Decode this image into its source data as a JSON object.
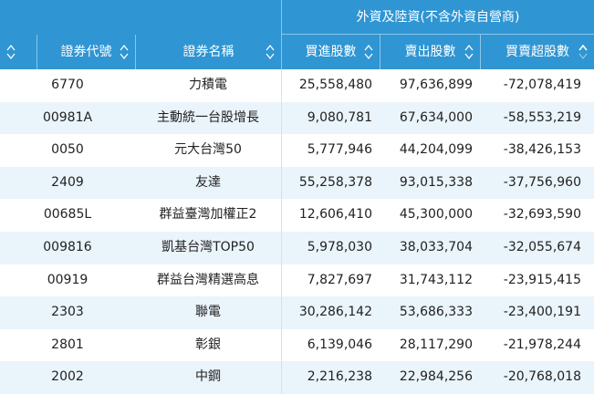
{
  "table": {
    "group_header": "外資及陸資(不含外資自營商)",
    "columns": {
      "code": "證券代號",
      "name": "證券名稱",
      "buy": "買進股數",
      "sell": "賣出股數",
      "net": "買賣超股數"
    },
    "rows": [
      {
        "code": "6770",
        "name": "力積電",
        "buy": "25,558,480",
        "sell": "97,636,899",
        "net": "-72,078,419"
      },
      {
        "code": "00981A",
        "name": "主動統一台股增長",
        "buy": "9,080,781",
        "sell": "67,634,000",
        "net": "-58,553,219"
      },
      {
        "code": "0050",
        "name": "元大台灣50",
        "buy": "5,777,946",
        "sell": "44,204,099",
        "net": "-38,426,153"
      },
      {
        "code": "2409",
        "name": "友達",
        "buy": "55,258,378",
        "sell": "93,015,338",
        "net": "-37,756,960"
      },
      {
        "code": "00685L",
        "name": "群益臺灣加權正2",
        "buy": "12,606,410",
        "sell": "45,300,000",
        "net": "-32,693,590"
      },
      {
        "code": "009816",
        "name": "凱基台灣TOP50",
        "buy": "5,978,030",
        "sell": "38,033,704",
        "net": "-32,055,674"
      },
      {
        "code": "00919",
        "name": "群益台灣精選高息",
        "buy": "7,827,697",
        "sell": "31,743,112",
        "net": "-23,915,415"
      },
      {
        "code": "2303",
        "name": "聯電",
        "buy": "30,286,142",
        "sell": "53,686,333",
        "net": "-23,400,191"
      },
      {
        "code": "2801",
        "name": "彰銀",
        "buy": "6,139,046",
        "sell": "28,117,290",
        "net": "-21,978,244"
      },
      {
        "code": "2002",
        "name": "中鋼",
        "buy": "2,216,238",
        "sell": "22,984,256",
        "net": "-20,768,018"
      }
    ]
  },
  "colors": {
    "header_bg": "#2f95d3",
    "alt_row_bg": "#eaf4fb",
    "header_text": "#ffffff"
  },
  "icons": {
    "sort": "sort-icon",
    "sort_active": "sort-up-icon"
  }
}
